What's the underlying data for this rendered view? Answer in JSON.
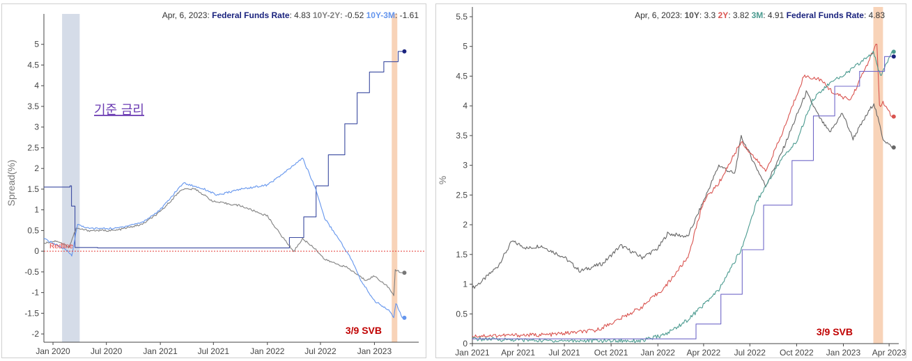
{
  "chart_data": [
    {
      "type": "line",
      "ylabel": "Spread(%)",
      "ylim": [
        -2.2,
        5.5
      ],
      "yticks": [
        "5",
        "4.5",
        "4",
        "3.5",
        "3",
        "2.5",
        "2",
        "1.5",
        "1",
        "0.5",
        "0",
        "-0.5",
        "-1",
        "-1.5",
        "-2"
      ],
      "xticks": [
        "Jan 2020",
        "Jul 2020",
        "Jan 2021",
        "Jul 2021",
        "Jan 2022",
        "Jul 2022",
        "Jan 2023"
      ],
      "tooltip": {
        "date": "Apr, 6, 2023:",
        "items": [
          {
            "name": "Federal Funds Rate",
            "value": "4.83",
            "color": "#1a237e"
          },
          {
            "name": "10Y-2Y",
            "value": "-0.52",
            "color": "#808080"
          },
          {
            "name": "10Y-3M",
            "value": "-1.61",
            "color": "#6495ed"
          }
        ]
      },
      "redline_label": "Redline",
      "annotation": "기준 금리",
      "svb_label": "3/9 SVB",
      "shaded_periods": [
        {
          "start": "2020-02",
          "end": "2020-04",
          "color": "#d5dce8"
        },
        {
          "start": "2023-03-01",
          "end": "2023-03-20",
          "color": "#f8d3b8"
        }
      ],
      "series": [
        {
          "name": "Federal Funds Rate",
          "color": "#3a4aa0",
          "points": [
            [
              "2019-12-01",
              1.55
            ],
            [
              "2020-02-28",
              1.58
            ],
            [
              "2020-03-04",
              1.09
            ],
            [
              "2020-03-16",
              0.09
            ],
            [
              "2020-06-01",
              0.08
            ],
            [
              "2021-12-31",
              0.08
            ],
            [
              "2022-03-17",
              0.33
            ],
            [
              "2022-05-05",
              0.83
            ],
            [
              "2022-06-16",
              1.58
            ],
            [
              "2022-07-28",
              2.33
            ],
            [
              "2022-09-22",
              3.08
            ],
            [
              "2022-11-03",
              3.83
            ],
            [
              "2022-12-15",
              4.33
            ],
            [
              "2023-02-02",
              4.58
            ],
            [
              "2023-03-23",
              4.83
            ],
            [
              "2023-04-06",
              4.83
            ]
          ]
        },
        {
          "name": "10Y-2Y",
          "color": "#808080",
          "points": [
            [
              "2019-12-01",
              0.2
            ],
            [
              "2020-01-15",
              0.25
            ],
            [
              "2020-02-25",
              0.1
            ],
            [
              "2020-03-20",
              0.55
            ],
            [
              "2020-05-01",
              0.5
            ],
            [
              "2020-08-01",
              0.5
            ],
            [
              "2020-11-01",
              0.65
            ],
            [
              "2021-01-01",
              0.95
            ],
            [
              "2021-03-15",
              1.5
            ],
            [
              "2021-05-01",
              1.5
            ],
            [
              "2021-07-01",
              1.2
            ],
            [
              "2021-10-01",
              1.1
            ],
            [
              "2022-01-01",
              0.85
            ],
            [
              "2022-02-15",
              0.4
            ],
            [
              "2022-04-01",
              0.0
            ],
            [
              "2022-05-01",
              0.3
            ],
            [
              "2022-06-15",
              0.05
            ],
            [
              "2022-07-15",
              -0.2
            ],
            [
              "2022-10-01",
              -0.4
            ],
            [
              "2022-12-01",
              -0.7
            ],
            [
              "2023-01-01",
              -0.6
            ],
            [
              "2023-02-15",
              -0.85
            ],
            [
              "2023-03-08",
              -1.08
            ],
            [
              "2023-03-13",
              -0.45
            ],
            [
              "2023-04-06",
              -0.52
            ]
          ]
        },
        {
          "name": "10Y-3M",
          "color": "#6495ed",
          "points": [
            [
              "2019-12-01",
              0.3
            ],
            [
              "2020-01-15",
              0.15
            ],
            [
              "2020-02-20",
              0.0
            ],
            [
              "2020-03-05",
              -0.1
            ],
            [
              "2020-03-25",
              0.65
            ],
            [
              "2020-05-01",
              0.55
            ],
            [
              "2020-08-01",
              0.55
            ],
            [
              "2020-11-01",
              0.7
            ],
            [
              "2021-01-01",
              1.0
            ],
            [
              "2021-03-20",
              1.65
            ],
            [
              "2021-06-01",
              1.5
            ],
            [
              "2021-07-15",
              1.35
            ],
            [
              "2021-10-01",
              1.5
            ],
            [
              "2022-01-01",
              1.6
            ],
            [
              "2022-03-01",
              1.9
            ],
            [
              "2022-05-01",
              2.25
            ],
            [
              "2022-06-15",
              1.5
            ],
            [
              "2022-07-15",
              0.8
            ],
            [
              "2022-09-01",
              0.3
            ],
            [
              "2022-10-15",
              -0.2
            ],
            [
              "2022-11-15",
              -0.7
            ],
            [
              "2023-01-01",
              -1.2
            ],
            [
              "2023-02-15",
              -1.4
            ],
            [
              "2023-03-08",
              -1.6
            ],
            [
              "2023-03-15",
              -1.25
            ],
            [
              "2023-04-06",
              -1.61
            ]
          ]
        }
      ]
    },
    {
      "type": "line",
      "ylabel": "%",
      "ylim": [
        0,
        5.5
      ],
      "yticks": [
        "5.5",
        "5",
        "4.5",
        "4",
        "3.5",
        "3",
        "2.5",
        "2",
        "1.5",
        "1",
        "0.5",
        "0"
      ],
      "xticks": [
        "Jan 2021",
        "Apr 2021",
        "Jul 2021",
        "Oct 2021",
        "Jan 2022",
        "Apr 2022",
        "Jul 2022",
        "Oct 2022",
        "Jan 2023",
        "Apr 2023"
      ],
      "tooltip": {
        "date": "Apr, 6, 2023:",
        "items": [
          {
            "name": "10Y",
            "value": "3.3",
            "color": "#555555"
          },
          {
            "name": "2Y",
            "value": "3.82",
            "color": "#d9534f"
          },
          {
            "name": "3M",
            "value": "4.91",
            "color": "#4a9a8f"
          },
          {
            "name": "Federal Funds Rate",
            "value": "4.83",
            "color": "#1a237e"
          }
        ]
      },
      "svb_label": "3/9 SVB",
      "shaded_periods": [
        {
          "start": "2023-03-01",
          "end": "2023-03-20",
          "color": "#f8d3b8"
        }
      ],
      "series": [
        {
          "name": "10Y",
          "color": "#666666",
          "points": [
            [
              "2021-01-01",
              0.93
            ],
            [
              "2021-01-20",
              1.05
            ],
            [
              "2021-02-20",
              1.3
            ],
            [
              "2021-03-20",
              1.72
            ],
            [
              "2021-04-20",
              1.6
            ],
            [
              "2021-05-15",
              1.65
            ],
            [
              "2021-07-01",
              1.45
            ],
            [
              "2021-08-01",
              1.22
            ],
            [
              "2021-09-15",
              1.35
            ],
            [
              "2021-10-20",
              1.65
            ],
            [
              "2021-12-01",
              1.45
            ],
            [
              "2022-01-01",
              1.6
            ],
            [
              "2022-01-20",
              1.85
            ],
            [
              "2022-03-01",
              1.8
            ],
            [
              "2022-04-01",
              2.4
            ],
            [
              "2022-05-01",
              3.0
            ],
            [
              "2022-06-01",
              2.85
            ],
            [
              "2022-06-14",
              3.48
            ],
            [
              "2022-08-01",
              2.65
            ],
            [
              "2022-09-01",
              3.2
            ],
            [
              "2022-10-20",
              4.23
            ],
            [
              "2022-11-15",
              3.8
            ],
            [
              "2022-12-05",
              3.55
            ],
            [
              "2022-12-30",
              3.88
            ],
            [
              "2023-01-20",
              3.45
            ],
            [
              "2023-03-02",
              4.05
            ],
            [
              "2023-03-20",
              3.45
            ],
            [
              "2023-04-06",
              3.3
            ]
          ]
        },
        {
          "name": "2Y",
          "color": "#d9534f",
          "points": [
            [
              "2021-01-01",
              0.13
            ],
            [
              "2021-06-01",
              0.15
            ],
            [
              "2021-09-01",
              0.22
            ],
            [
              "2021-10-15",
              0.4
            ],
            [
              "2021-12-01",
              0.62
            ],
            [
              "2022-01-15",
              0.95
            ],
            [
              "2022-03-01",
              1.45
            ],
            [
              "2022-04-01",
              2.4
            ],
            [
              "2022-05-01",
              2.7
            ],
            [
              "2022-06-14",
              3.4
            ],
            [
              "2022-08-01",
              2.9
            ],
            [
              "2022-09-01",
              3.5
            ],
            [
              "2022-10-15",
              4.5
            ],
            [
              "2022-11-15",
              4.45
            ],
            [
              "2022-12-15",
              4.2
            ],
            [
              "2023-01-15",
              4.1
            ],
            [
              "2023-03-08",
              5.05
            ],
            [
              "2023-03-13",
              4.0
            ],
            [
              "2023-03-20",
              4.05
            ],
            [
              "2023-04-06",
              3.82
            ]
          ]
        },
        {
          "name": "3M",
          "color": "#4a9a8f",
          "points": [
            [
              "2021-01-01",
              0.08
            ],
            [
              "2021-06-01",
              0.05
            ],
            [
              "2021-12-01",
              0.05
            ],
            [
              "2022-01-15",
              0.15
            ],
            [
              "2022-03-01",
              0.4
            ],
            [
              "2022-05-01",
              0.9
            ],
            [
              "2022-06-15",
              1.6
            ],
            [
              "2022-07-15",
              2.4
            ],
            [
              "2022-09-01",
              3.1
            ],
            [
              "2022-10-01",
              3.4
            ],
            [
              "2022-11-01",
              4.1
            ],
            [
              "2022-12-01",
              4.35
            ],
            [
              "2023-01-15",
              4.6
            ],
            [
              "2023-03-01",
              4.9
            ],
            [
              "2023-03-15",
              4.5
            ],
            [
              "2023-04-06",
              4.91
            ]
          ]
        },
        {
          "name": "Federal Funds Rate",
          "color": "#7068c8",
          "points": [
            [
              "2021-01-01",
              0.08
            ],
            [
              "2022-03-17",
              0.33
            ],
            [
              "2022-05-05",
              0.83
            ],
            [
              "2022-06-16",
              1.58
            ],
            [
              "2022-07-28",
              2.33
            ],
            [
              "2022-09-22",
              3.08
            ],
            [
              "2022-11-03",
              3.83
            ],
            [
              "2022-12-15",
              4.33
            ],
            [
              "2023-02-02",
              4.58
            ],
            [
              "2023-03-23",
              4.83
            ],
            [
              "2023-04-06",
              4.83
            ]
          ]
        }
      ]
    }
  ]
}
